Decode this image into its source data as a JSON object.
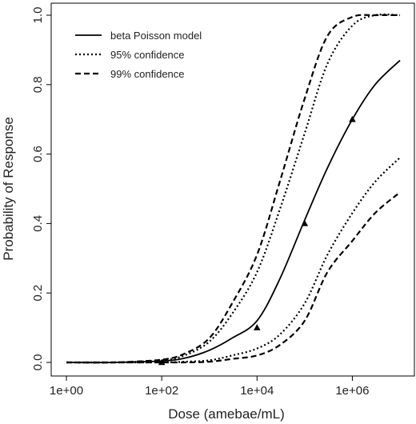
{
  "chart_data": {
    "type": "line",
    "title": "",
    "xlabel": "Dose (amebae/mL)",
    "ylabel": "Probability of Response",
    "x_scale": "log10",
    "xlim": [
      1,
      10000000
    ],
    "ylim": [
      0,
      1
    ],
    "grid": false,
    "legend_position": "top-left",
    "x_ticks": [
      1,
      100,
      10000,
      1000000
    ],
    "x_tick_labels": [
      "1e+00",
      "1e+02",
      "1e+04",
      "1e+06"
    ],
    "y_ticks": [
      0,
      0.2,
      0.4,
      0.6,
      0.8,
      1.0
    ],
    "y_tick_labels": [
      "0.0",
      "0.2",
      "0.4",
      "0.6",
      "0.8",
      "1.0"
    ],
    "series": [
      {
        "name": "beta Poisson model",
        "style": "solid",
        "color": "#000000",
        "x": [
          1,
          10,
          100,
          300,
          1000,
          3000,
          10000,
          30000,
          100000,
          300000,
          1000000,
          3000000,
          10000000
        ],
        "y": [
          0.0,
          0.0,
          0.004,
          0.012,
          0.035,
          0.07,
          0.12,
          0.24,
          0.41,
          0.56,
          0.7,
          0.8,
          0.87
        ]
      },
      {
        "name": "95% confidence",
        "style": "dotted",
        "color": "#000000",
        "x": [
          1,
          10,
          100,
          300,
          1000,
          3000,
          10000,
          30000,
          100000,
          300000,
          1000000,
          3000000,
          10000000
        ],
        "y": [
          0.0,
          0.0,
          0.006,
          0.02,
          0.06,
          0.14,
          0.26,
          0.44,
          0.66,
          0.86,
          0.97,
          1.0,
          1.0
        ]
      },
      {
        "name": "95% confidence",
        "style": "dotted",
        "color": "#000000",
        "x": [
          1,
          10,
          100,
          300,
          1000,
          3000,
          10000,
          30000,
          100000,
          300000,
          1000000,
          3000000,
          10000000
        ],
        "y": [
          0.0,
          0.0,
          0.0,
          0.002,
          0.006,
          0.02,
          0.04,
          0.08,
          0.17,
          0.31,
          0.43,
          0.52,
          0.59
        ]
      },
      {
        "name": "99% confidence",
        "style": "dashed",
        "color": "#000000",
        "x": [
          1,
          10,
          100,
          300,
          1000,
          3000,
          10000,
          30000,
          100000,
          300000,
          1000000,
          3000000,
          10000000
        ],
        "y": [
          0.0,
          0.0,
          0.008,
          0.025,
          0.07,
          0.17,
          0.31,
          0.52,
          0.76,
          0.94,
          0.995,
          1.0,
          1.0
        ]
      },
      {
        "name": "99% confidence",
        "style": "dashed",
        "color": "#000000",
        "x": [
          1,
          10,
          100,
          300,
          1000,
          3000,
          10000,
          30000,
          100000,
          300000,
          1000000,
          3000000,
          10000000
        ],
        "y": [
          0.0,
          0.0,
          0.0,
          0.0,
          0.002,
          0.01,
          0.02,
          0.05,
          0.12,
          0.26,
          0.35,
          0.43,
          0.49
        ]
      }
    ],
    "observed_points": {
      "marker": "triangle",
      "x": [
        100,
        10000,
        100000,
        1000000
      ],
      "y": [
        0.0,
        0.1,
        0.4,
        0.7
      ]
    },
    "legend": [
      {
        "label": "beta Poisson model",
        "style": "solid"
      },
      {
        "label": "95% confidence",
        "style": "dotted"
      },
      {
        "label": "99% confidence",
        "style": "dashed"
      }
    ]
  }
}
